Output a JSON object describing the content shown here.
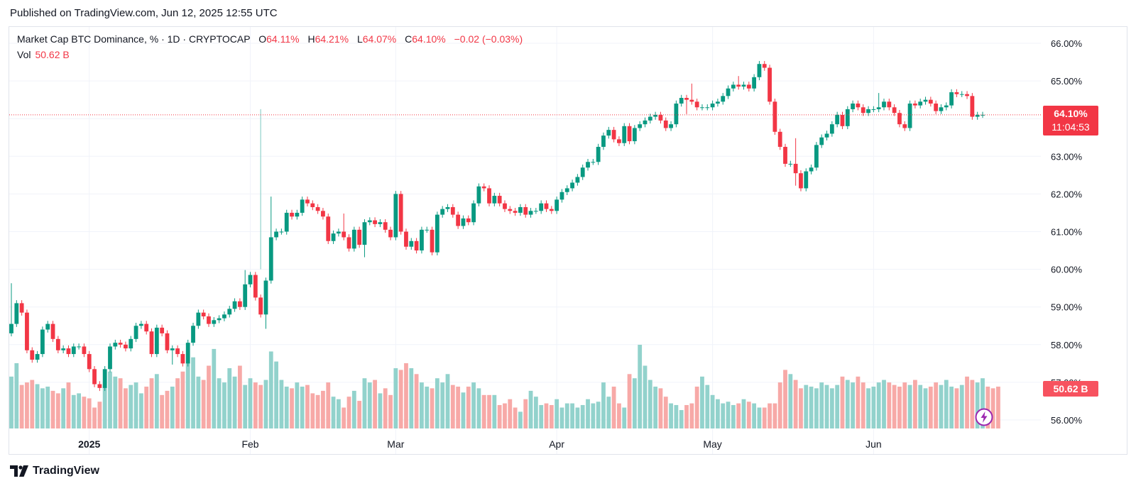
{
  "published": "Published on TradingView.com, Jun 12, 2025 12:55 UTC",
  "legend": {
    "symbol": "Market Cap BTC Dominance, % · 1D · CRYPTOCAP",
    "o_label": "O",
    "o_value": "64.11%",
    "h_label": "H",
    "h_value": "64.21%",
    "l_label": "L",
    "l_value": "64.07%",
    "c_label": "C",
    "c_value": "64.10%",
    "change": "−0.02 (−0.03%)",
    "vol_label": "Vol",
    "vol_value": "50.62 B"
  },
  "badges": {
    "price": "64.10%",
    "countdown": "11:04:53",
    "volume": "50.62 B"
  },
  "brand": "TradingView",
  "colors": {
    "up": "#089981",
    "down": "#f23645",
    "vol_up": "#92d2cc",
    "vol_down": "#f7a9a7",
    "grid": "#f0f3fa",
    "text": "#131722",
    "accent_purple": "#9c27b0"
  },
  "chart_data": {
    "type": "candlestick",
    "title": "Market Cap BTC Dominance, % · 1D · CRYPTOCAP",
    "x_start": "2024-12-17",
    "x_tick_labels": [
      "2025",
      "Feb",
      "Mar",
      "Apr",
      "May",
      "Jun"
    ],
    "y_tick_labels": [
      "56.00%",
      "57.00%",
      "58.00%",
      "59.00%",
      "60.00%",
      "61.00%",
      "62.00%",
      "63.00%",
      "64.00%",
      "65.00%",
      "66.00%"
    ],
    "ylim": [
      55.8,
      66.2
    ],
    "last_price": 64.1,
    "close": [
      58.55,
      59.1,
      58.85,
      57.85,
      57.6,
      57.75,
      58.4,
      58.55,
      58.15,
      57.85,
      57.9,
      57.75,
      57.95,
      57.95,
      57.75,
      57.35,
      56.95,
      56.85,
      57.35,
      57.95,
      58.05,
      58.0,
      57.9,
      58.15,
      58.5,
      58.55,
      58.35,
      57.75,
      58.45,
      58.3,
      57.85,
      57.9,
      57.75,
      57.5,
      58.05,
      58.5,
      58.85,
      58.75,
      58.55,
      58.65,
      58.7,
      58.8,
      58.95,
      59.15,
      59.0,
      59.6,
      59.85,
      59.25,
      58.8,
      59.7,
      60.85,
      61.0,
      61.0,
      61.5,
      61.4,
      61.5,
      61.85,
      61.75,
      61.65,
      61.55,
      61.4,
      60.75,
      60.95,
      61.0,
      60.85,
      60.55,
      61.05,
      60.65,
      61.25,
      61.3,
      61.2,
      61.25,
      61.05,
      60.85,
      62.0,
      61.0,
      60.6,
      60.75,
      60.5,
      61.05,
      61.05,
      60.45,
      61.45,
      61.6,
      61.65,
      61.45,
      61.15,
      61.35,
      61.25,
      61.75,
      62.2,
      62.15,
      61.75,
      61.95,
      61.75,
      61.6,
      61.55,
      61.5,
      61.65,
      61.45,
      61.55,
      61.55,
      61.75,
      61.6,
      61.55,
      61.85,
      62.05,
      62.15,
      62.3,
      62.45,
      62.7,
      62.85,
      62.85,
      63.25,
      63.55,
      63.7,
      63.45,
      63.35,
      63.8,
      63.4,
      63.75,
      63.85,
      63.95,
      64.05,
      64.1,
      63.95,
      63.75,
      63.85,
      64.4,
      64.55,
      64.5,
      64.45,
      64.3,
      64.3,
      64.3,
      64.4,
      64.45,
      64.6,
      64.8,
      64.9,
      64.85,
      64.9,
      64.8,
      65.1,
      65.45,
      65.35,
      64.45,
      63.65,
      63.25,
      62.8,
      62.8,
      62.55,
      62.15,
      62.6,
      62.7,
      63.3,
      63.5,
      63.6,
      63.85,
      64.1,
      63.8,
      64.25,
      64.4,
      64.3,
      64.15,
      64.25,
      64.25,
      64.3,
      64.45,
      64.3,
      64.15,
      63.85,
      63.75,
      64.4,
      64.35,
      64.45,
      64.5,
      64.4,
      64.2,
      64.3,
      64.35,
      64.7,
      64.65,
      64.65,
      64.6,
      64.05,
      64.1,
      64.1
    ],
    "volume_rel": [
      0.62,
      0.78,
      0.52,
      0.55,
      0.58,
      0.53,
      0.48,
      0.5,
      0.45,
      0.42,
      0.48,
      0.55,
      0.4,
      0.42,
      0.38,
      0.36,
      0.25,
      0.32,
      0.5,
      0.68,
      0.62,
      0.6,
      0.48,
      0.52,
      0.55,
      0.42,
      0.5,
      0.6,
      0.65,
      0.4,
      0.45,
      0.5,
      0.6,
      0.68,
      0.78,
      0.85,
      0.62,
      0.58,
      0.75,
      0.95,
      0.6,
      0.55,
      0.72,
      0.62,
      0.75,
      0.52,
      0.6,
      0.55,
      0.52,
      0.58,
      0.92,
      0.8,
      0.58,
      0.5,
      0.48,
      0.55,
      0.5,
      0.52,
      0.42,
      0.4,
      0.45,
      0.55,
      0.38,
      0.35,
      0.25,
      0.38,
      0.45,
      0.33,
      0.6,
      0.55,
      0.58,
      0.42,
      0.48,
      0.4,
      0.72,
      0.7,
      0.78,
      0.72,
      0.65,
      0.55,
      0.5,
      0.48,
      0.6,
      0.55,
      0.65,
      0.52,
      0.5,
      0.43,
      0.5,
      0.55,
      0.48,
      0.4,
      0.4,
      0.4,
      0.28,
      0.3,
      0.35,
      0.25,
      0.2,
      0.35,
      0.45,
      0.38,
      0.28,
      0.3,
      0.28,
      0.35,
      0.25,
      0.3,
      0.3,
      0.25,
      0.28,
      0.35,
      0.3,
      0.32,
      0.55,
      0.38,
      0.5,
      0.3,
      0.25,
      0.65,
      0.6,
      1.0,
      0.75,
      0.58,
      0.5,
      0.48,
      0.38,
      0.3,
      0.28,
      0.22,
      0.28,
      0.3,
      0.5,
      0.62,
      0.52,
      0.4,
      0.35,
      0.3,
      0.32,
      0.28,
      0.3,
      0.35,
      0.32,
      0.3,
      0.25,
      0.25,
      0.3,
      0.3,
      0.55,
      0.7,
      0.65,
      0.58,
      0.48,
      0.52,
      0.5,
      0.48,
      0.55,
      0.52,
      0.48,
      0.52,
      0.62,
      0.58,
      0.55,
      0.62,
      0.55,
      0.48,
      0.5,
      0.55,
      0.58,
      0.55,
      0.52,
      0.5,
      0.55,
      0.52,
      0.58,
      0.52,
      0.48,
      0.5,
      0.55,
      0.52,
      0.58,
      0.5,
      0.48,
      0.52,
      0.62,
      0.58,
      0.55,
      0.6,
      0.5,
      0.48,
      0.5
    ]
  }
}
